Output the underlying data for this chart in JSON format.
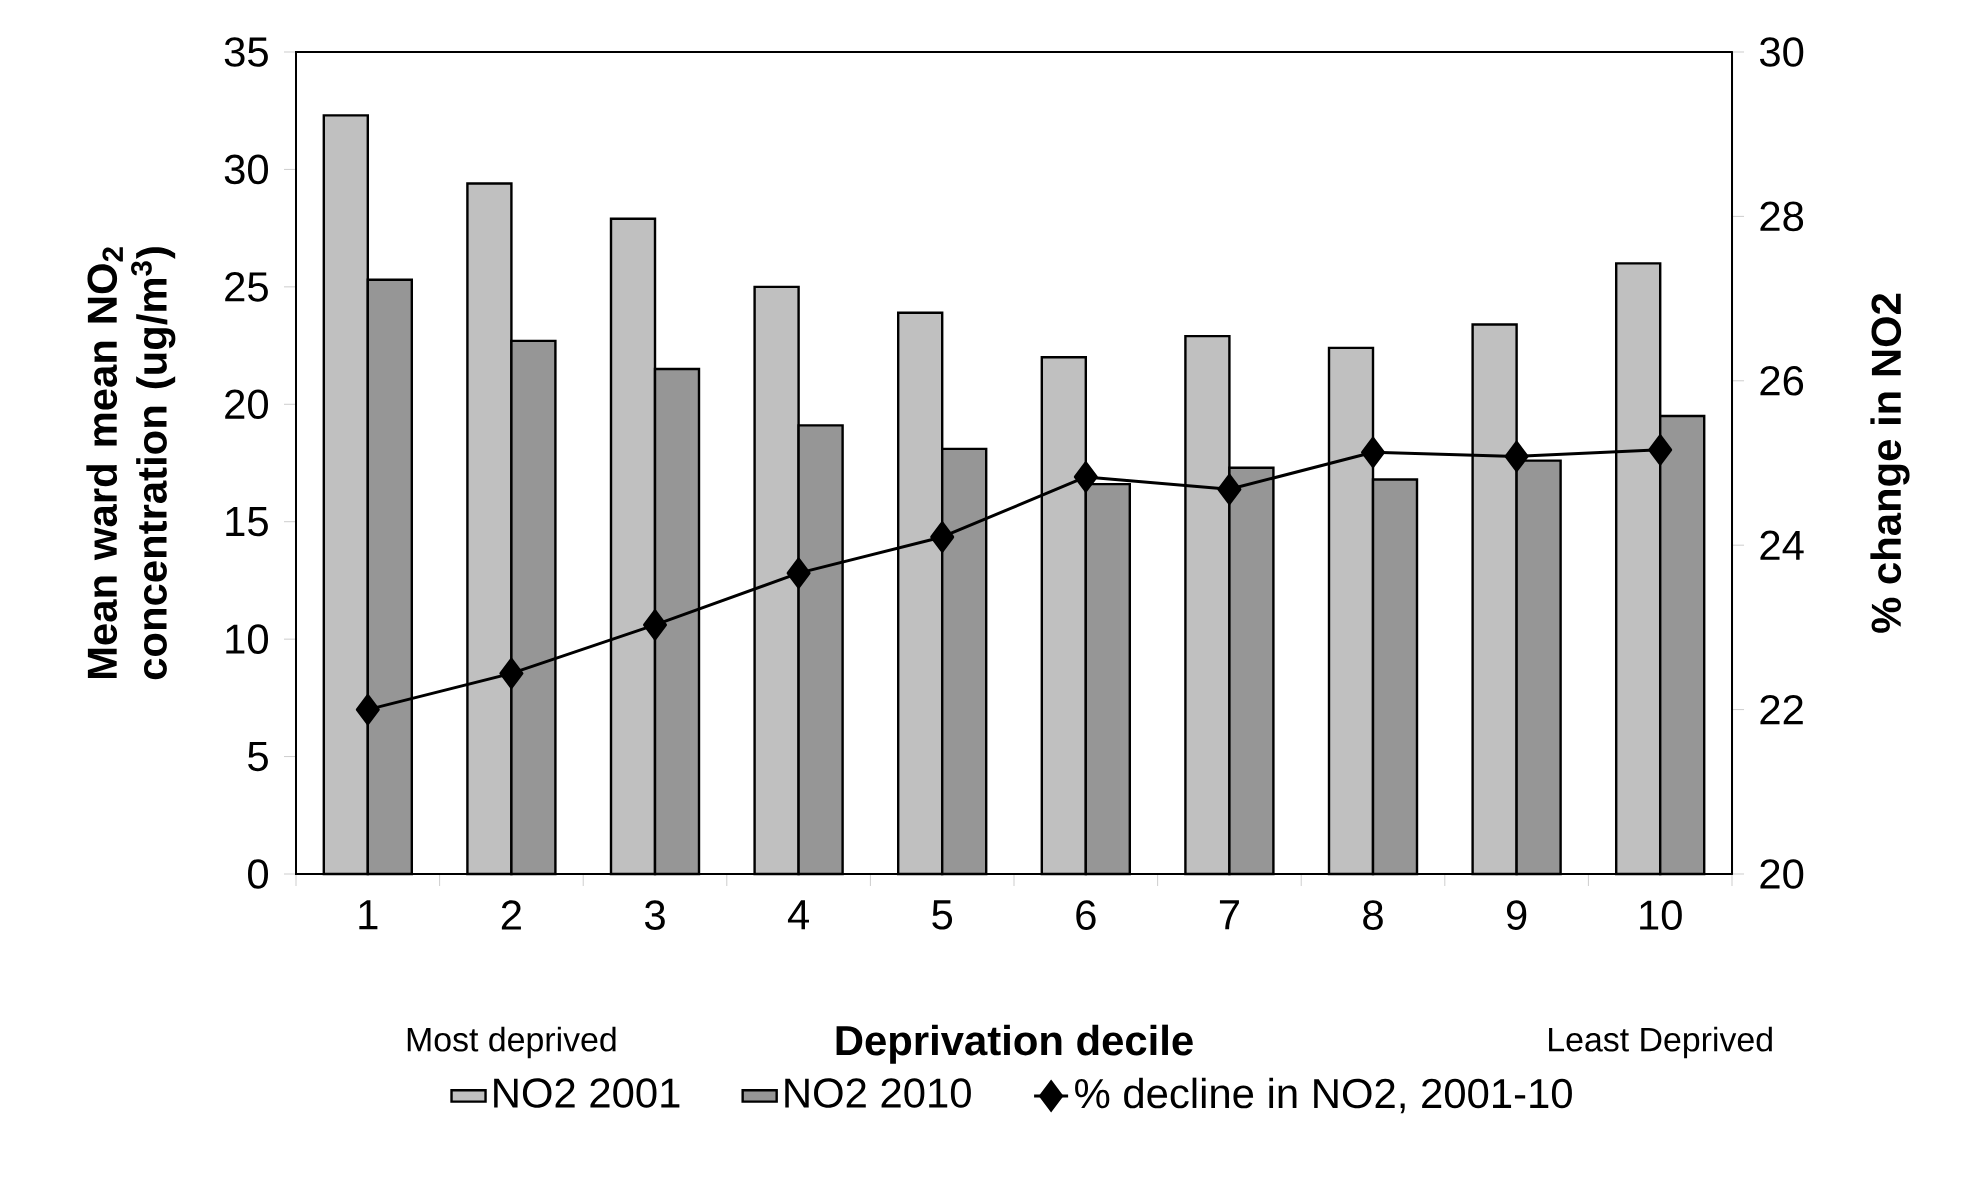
{
  "chart_data": {
    "type": "bar",
    "xlabel": "Deprivation decile",
    "ylabel": "Mean ward mean NO$_{2}$ concentration (ug/m$^{3}$)",
    "y2label": "% change in NO2",
    "categories": [
      "1",
      "2",
      "3",
      "4",
      "5",
      "6",
      "7",
      "8",
      "9",
      "10"
    ],
    "series": [
      {
        "name": "NO2 2001",
        "color": "#c0c0c0",
        "values": [
          32.3,
          29.4,
          27.9,
          25.0,
          23.9,
          22.0,
          22.9,
          22.4,
          23.4,
          26.0
        ]
      },
      {
        "name": "NO2 2010",
        "color": "#969696",
        "values": [
          25.3,
          22.7,
          21.5,
          19.1,
          18.1,
          16.6,
          17.3,
          16.8,
          17.6,
          19.5
        ]
      },
      {
        "name": "% decline in NO2, 2001-10",
        "type": "line",
        "axis": "y2",
        "color": "#000000",
        "values": [
          22.0,
          22.44,
          23.03,
          23.66,
          24.1,
          24.83,
          24.68,
          25.13,
          25.08,
          25.16
        ]
      }
    ],
    "ylim": [
      0,
      35
    ],
    "yticks": [
      0,
      5,
      10,
      15,
      20,
      25,
      30,
      35
    ],
    "y2lim": [
      20,
      30
    ],
    "y2ticks": [
      20,
      22,
      24,
      26,
      28,
      30
    ],
    "marker": "diamond",
    "legend": "bottom",
    "grid": false,
    "annotations": [
      "Most deprived",
      "Least Deprived"
    ]
  }
}
